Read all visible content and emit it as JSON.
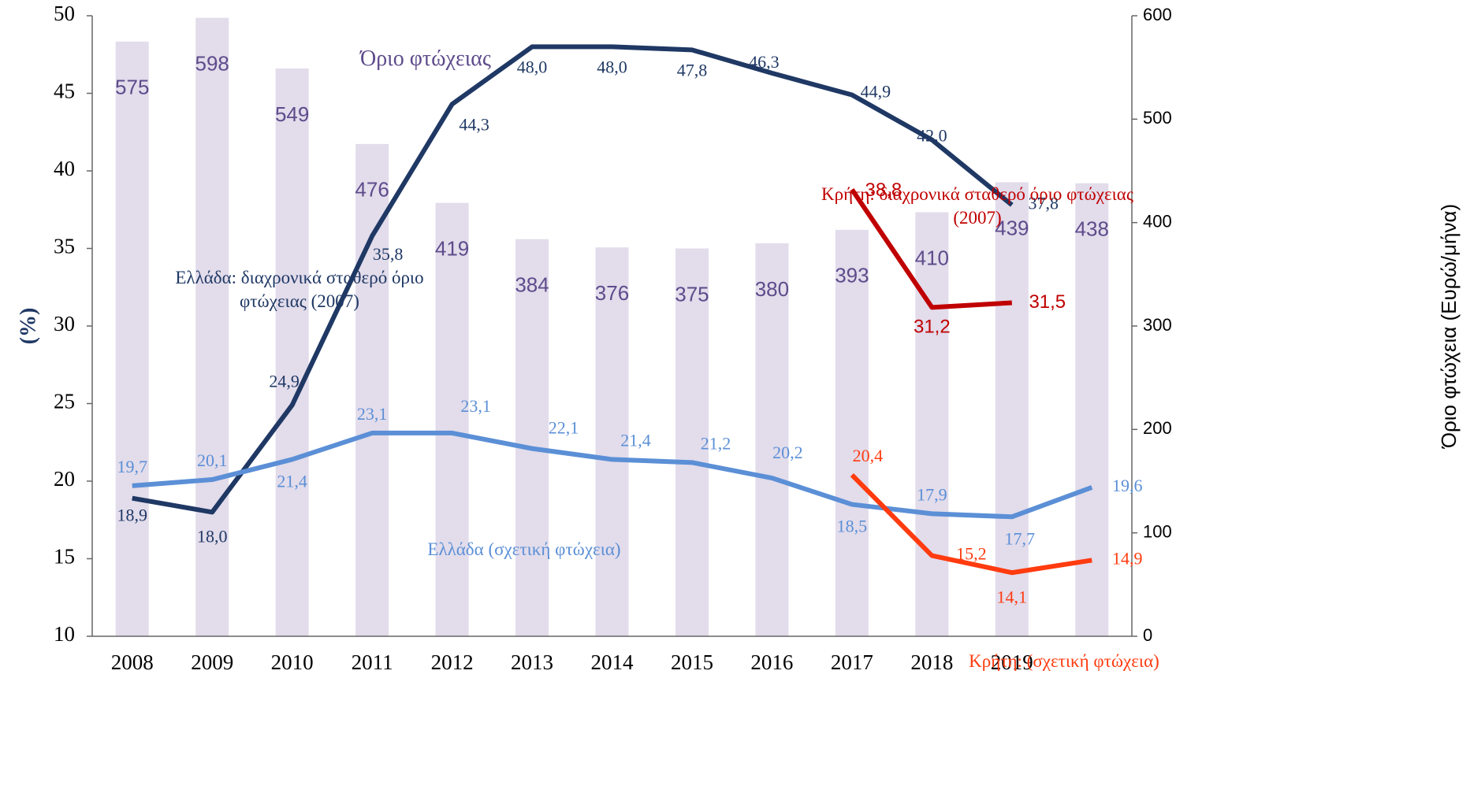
{
  "chart_data": {
    "type": "bar-line",
    "categories": [
      "2008",
      "2009",
      "2010",
      "2011",
      "2012",
      "2013",
      "2014",
      "2015",
      "2016",
      "2017",
      "2018",
      "2019",
      null
    ],
    "y_label": "(%)",
    "y2_label": "Όριο φτώχεια (Ευρώ/μήνα)",
    "ylim": [
      10,
      50
    ],
    "yticks": [
      10,
      15,
      20,
      25,
      30,
      35,
      40,
      45,
      50
    ],
    "y2lim": [
      0,
      600
    ],
    "y2ticks": [
      0,
      100,
      200,
      300,
      400,
      500,
      600
    ],
    "series": [
      {
        "name": "Όριο φτώχειας",
        "type": "bar",
        "axis": "y2",
        "color": "#e2dceb",
        "label_color": "#5e4b8b",
        "values": [
          575,
          598,
          549,
          476,
          419,
          384,
          376,
          375,
          380,
          393,
          410,
          439,
          438
        ]
      },
      {
        "name": "Ελλάδα: διαχρονικά σταθερό όριο φτώχειας (2007)",
        "type": "line",
        "color": "#1f3864",
        "values": [
          18.9,
          18.0,
          24.9,
          35.8,
          44.3,
          48.0,
          48.0,
          47.8,
          46.3,
          44.9,
          42.0,
          37.8,
          null
        ],
        "value_labels": [
          "18,9",
          "18,0",
          "24,9",
          "35,8",
          "44,3",
          "48,0",
          "48,0",
          "47,8",
          "46,3",
          "44,9",
          "42,0",
          "37,8",
          null
        ]
      },
      {
        "name": "Ελλάδα (σχετική φτώχεια)",
        "type": "line",
        "color": "#5b8fd6",
        "values": [
          19.7,
          20.1,
          21.4,
          23.1,
          23.1,
          22.1,
          21.4,
          21.2,
          20.2,
          18.5,
          17.9,
          17.7,
          19.6
        ],
        "value_labels": [
          "19,7",
          "20,1",
          "21,4",
          "23,1",
          "23,1",
          "22,1",
          "21,4",
          "21,2",
          "20,2",
          "18,5",
          "17,9",
          "17,7",
          "19,6"
        ]
      },
      {
        "name": "Κρήτη: διαχρονικά σταθερό όριο φτώχειας (2007)",
        "type": "line",
        "color": "#c00000",
        "values": [
          null,
          null,
          null,
          null,
          null,
          null,
          null,
          null,
          null,
          38.8,
          31.2,
          31.5,
          null
        ],
        "value_labels": [
          null,
          null,
          null,
          null,
          null,
          null,
          null,
          null,
          null,
          "38,8",
          "31,2",
          "31,5",
          null
        ]
      },
      {
        "name": "Κρήτη: (σχετική φτώχεια)",
        "type": "line",
        "color": "#ff3b0f",
        "values": [
          null,
          null,
          null,
          null,
          null,
          null,
          null,
          null,
          null,
          20.4,
          15.2,
          14.1,
          14.9
        ],
        "value_labels": [
          null,
          null,
          null,
          null,
          null,
          null,
          null,
          null,
          null,
          "20,4",
          "15,2",
          "14,1",
          "14,9"
        ]
      }
    ]
  }
}
